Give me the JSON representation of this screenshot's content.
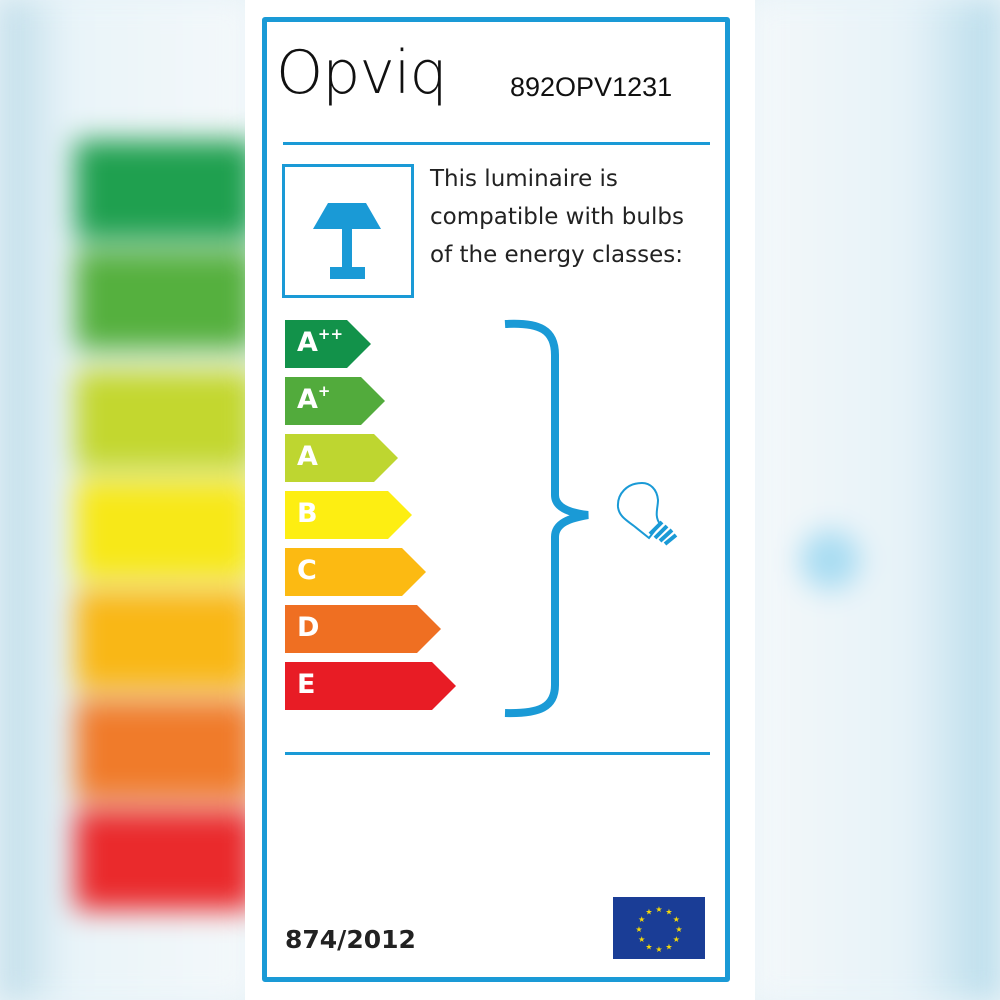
{
  "brand": {
    "logo_text": "Opviq",
    "model_code": "892OPV1231"
  },
  "description": [
    "This luminaire is",
    "compatible with bulbs",
    "of the energy classes:"
  ],
  "energy_classes": [
    {
      "label": "A",
      "sup": "++",
      "color": "#12924a"
    },
    {
      "label": "A",
      "sup": "+",
      "color": "#52ab3c"
    },
    {
      "label": "A",
      "sup": "",
      "color": "#bed630"
    },
    {
      "label": "B",
      "sup": "",
      "color": "#fdee12"
    },
    {
      "label": "C",
      "sup": "",
      "color": "#fcba12"
    },
    {
      "label": "D",
      "sup": "",
      "color": "#ef6f22"
    },
    {
      "label": "E",
      "sup": "",
      "color": "#e81c25"
    }
  ],
  "regulation": "874/2012",
  "colors": {
    "accent": "#1a9ad6",
    "eu_flag": "#1a3d96",
    "eu_stars": "#f5d90a"
  },
  "icons": [
    "table-lamp-icon",
    "bracket-icon",
    "light-bulb-icon",
    "eu-flag-icon"
  ]
}
